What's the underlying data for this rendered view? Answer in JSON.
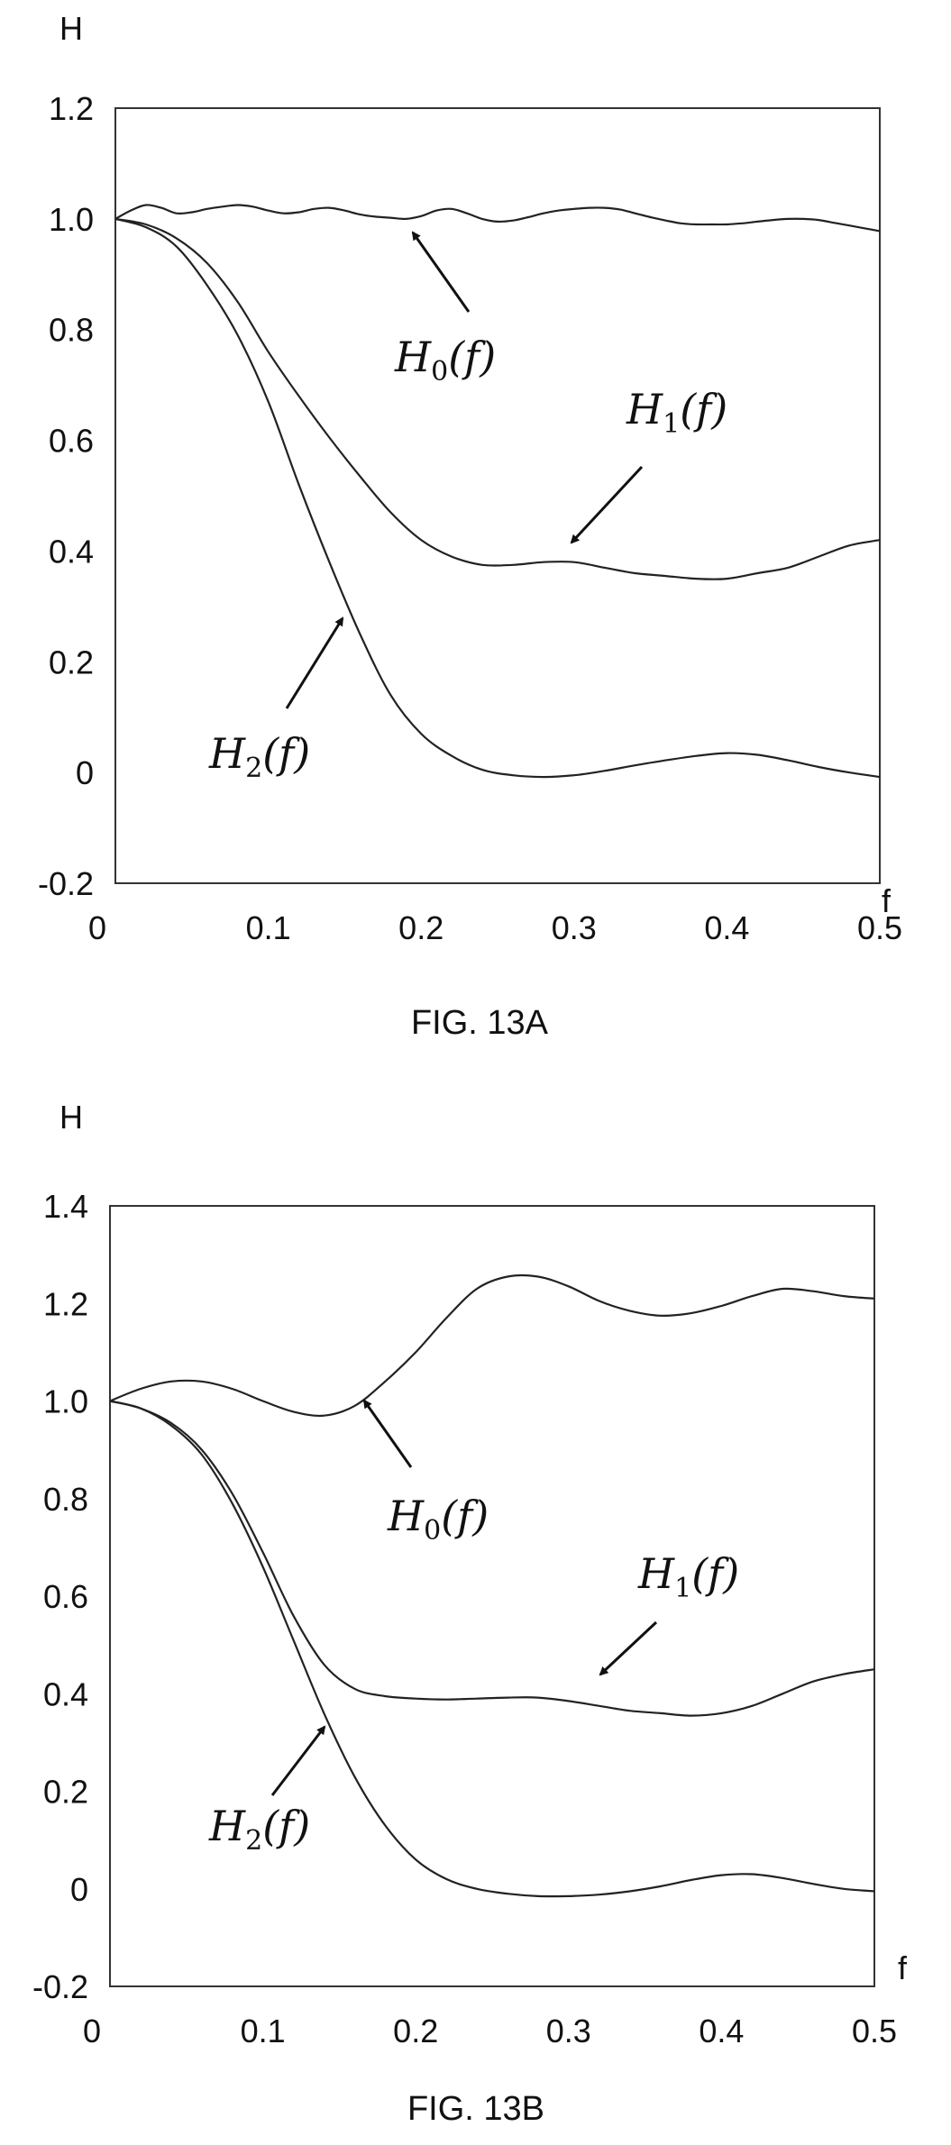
{
  "chart_data": [
    {
      "type": "line",
      "caption": "FIG. 13A",
      "ylabel": "H",
      "xlabel": "f",
      "xlim": [
        0,
        0.5
      ],
      "ylim": [
        -0.2,
        1.2
      ],
      "xticks": [
        "0",
        "0.1",
        "0.2",
        "0.3",
        "0.4",
        "0.5"
      ],
      "yticks": [
        "-0.2",
        "0",
        "0.2",
        "0.4",
        "0.6",
        "0.8",
        "1.0",
        "1.2"
      ],
      "series": [
        {
          "name": "H0(f)",
          "x": [
            0,
            0.01,
            0.02,
            0.03,
            0.04,
            0.05,
            0.06,
            0.07,
            0.08,
            0.09,
            0.1,
            0.11,
            0.12,
            0.13,
            0.14,
            0.15,
            0.16,
            0.17,
            0.18,
            0.19,
            0.2,
            0.21,
            0.22,
            0.23,
            0.24,
            0.25,
            0.26,
            0.27,
            0.28,
            0.29,
            0.3,
            0.31,
            0.32,
            0.33,
            0.34,
            0.35,
            0.36,
            0.37,
            0.38,
            0.39,
            0.4,
            0.41,
            0.42,
            0.43,
            0.44,
            0.45,
            0.46,
            0.47,
            0.48,
            0.49,
            0.5
          ],
          "y": [
            1.0,
            1.015,
            1.025,
            1.02,
            1.01,
            1.012,
            1.018,
            1.022,
            1.025,
            1.022,
            1.015,
            1.01,
            1.012,
            1.018,
            1.02,
            1.015,
            1.008,
            1.004,
            1.002,
            1.0,
            1.005,
            1.015,
            1.018,
            1.01,
            1.0,
            0.995,
            0.997,
            1.003,
            1.01,
            1.015,
            1.018,
            1.02,
            1.02,
            1.017,
            1.01,
            1.003,
            0.997,
            0.992,
            0.99,
            0.99,
            0.99,
            0.992,
            0.995,
            0.998,
            1.0,
            1.0,
            0.998,
            0.993,
            0.988,
            0.983,
            0.978
          ]
        },
        {
          "name": "H1(f)",
          "x": [
            0,
            0.02,
            0.04,
            0.06,
            0.08,
            0.1,
            0.12,
            0.14,
            0.16,
            0.18,
            0.2,
            0.22,
            0.24,
            0.26,
            0.28,
            0.3,
            0.32,
            0.34,
            0.36,
            0.38,
            0.4,
            0.42,
            0.44,
            0.46,
            0.48,
            0.5
          ],
          "y": [
            1.0,
            0.99,
            0.965,
            0.92,
            0.85,
            0.76,
            0.68,
            0.605,
            0.535,
            0.47,
            0.42,
            0.39,
            0.375,
            0.375,
            0.38,
            0.38,
            0.37,
            0.36,
            0.355,
            0.35,
            0.35,
            0.36,
            0.37,
            0.39,
            0.41,
            0.42
          ]
        },
        {
          "name": "H2(f)",
          "x": [
            0,
            0.02,
            0.04,
            0.06,
            0.08,
            0.1,
            0.12,
            0.14,
            0.16,
            0.18,
            0.2,
            0.22,
            0.24,
            0.26,
            0.28,
            0.3,
            0.32,
            0.34,
            0.36,
            0.38,
            0.4,
            0.42,
            0.44,
            0.46,
            0.48,
            0.5
          ],
          "y": [
            1.0,
            0.985,
            0.95,
            0.88,
            0.79,
            0.67,
            0.52,
            0.38,
            0.25,
            0.14,
            0.07,
            0.03,
            0.005,
            -0.005,
            -0.008,
            -0.005,
            0.003,
            0.013,
            0.022,
            0.03,
            0.035,
            0.032,
            0.022,
            0.01,
            0.0,
            -0.008
          ]
        }
      ],
      "annotations": [
        "H0(f)",
        "H1(f)",
        "H2(f)"
      ]
    },
    {
      "type": "line",
      "caption": "FIG. 13B",
      "ylabel": "H",
      "xlabel": "f",
      "xlim": [
        0,
        0.5
      ],
      "ylim": [
        -0.2,
        1.4
      ],
      "xticks": [
        "0",
        "0.1",
        "0.2",
        "0.3",
        "0.4",
        "0.5"
      ],
      "yticks": [
        "-0.2",
        "0",
        "0.2",
        "0.4",
        "0.6",
        "0.8",
        "1.0",
        "1.2",
        "1.4"
      ],
      "series": [
        {
          "name": "H0(f)",
          "x": [
            0,
            0.02,
            0.04,
            0.06,
            0.08,
            0.1,
            0.12,
            0.14,
            0.16,
            0.18,
            0.2,
            0.22,
            0.24,
            0.26,
            0.28,
            0.3,
            0.32,
            0.34,
            0.36,
            0.38,
            0.4,
            0.42,
            0.44,
            0.46,
            0.48,
            0.5
          ],
          "y": [
            1.0,
            1.025,
            1.04,
            1.04,
            1.025,
            1.0,
            0.978,
            0.97,
            0.99,
            1.04,
            1.1,
            1.17,
            1.23,
            1.255,
            1.255,
            1.235,
            1.205,
            1.185,
            1.175,
            1.18,
            1.195,
            1.215,
            1.23,
            1.225,
            1.215,
            1.21
          ]
        },
        {
          "name": "H1(f)",
          "x": [
            0,
            0.02,
            0.04,
            0.06,
            0.08,
            0.1,
            0.12,
            0.14,
            0.16,
            0.18,
            0.2,
            0.22,
            0.24,
            0.26,
            0.28,
            0.3,
            0.32,
            0.34,
            0.36,
            0.38,
            0.4,
            0.42,
            0.44,
            0.46,
            0.48,
            0.5
          ],
          "y": [
            1.0,
            0.985,
            0.955,
            0.9,
            0.81,
            0.69,
            0.56,
            0.46,
            0.41,
            0.395,
            0.39,
            0.388,
            0.39,
            0.392,
            0.392,
            0.385,
            0.375,
            0.365,
            0.36,
            0.355,
            0.36,
            0.375,
            0.4,
            0.425,
            0.44,
            0.45
          ]
        },
        {
          "name": "H2(f)",
          "x": [
            0,
            0.02,
            0.04,
            0.06,
            0.08,
            0.1,
            0.12,
            0.14,
            0.16,
            0.18,
            0.2,
            0.22,
            0.24,
            0.26,
            0.28,
            0.3,
            0.32,
            0.34,
            0.36,
            0.38,
            0.4,
            0.42,
            0.44,
            0.46,
            0.48,
            0.5
          ],
          "y": [
            1.0,
            0.985,
            0.95,
            0.89,
            0.79,
            0.66,
            0.51,
            0.36,
            0.23,
            0.13,
            0.06,
            0.02,
            0.0,
            -0.01,
            -0.015,
            -0.015,
            -0.012,
            -0.005,
            0.005,
            0.018,
            0.028,
            0.03,
            0.022,
            0.01,
            0.0,
            -0.005
          ]
        }
      ],
      "annotations": [
        "H0(f)",
        "H1(f)",
        "H2(f)"
      ]
    }
  ]
}
